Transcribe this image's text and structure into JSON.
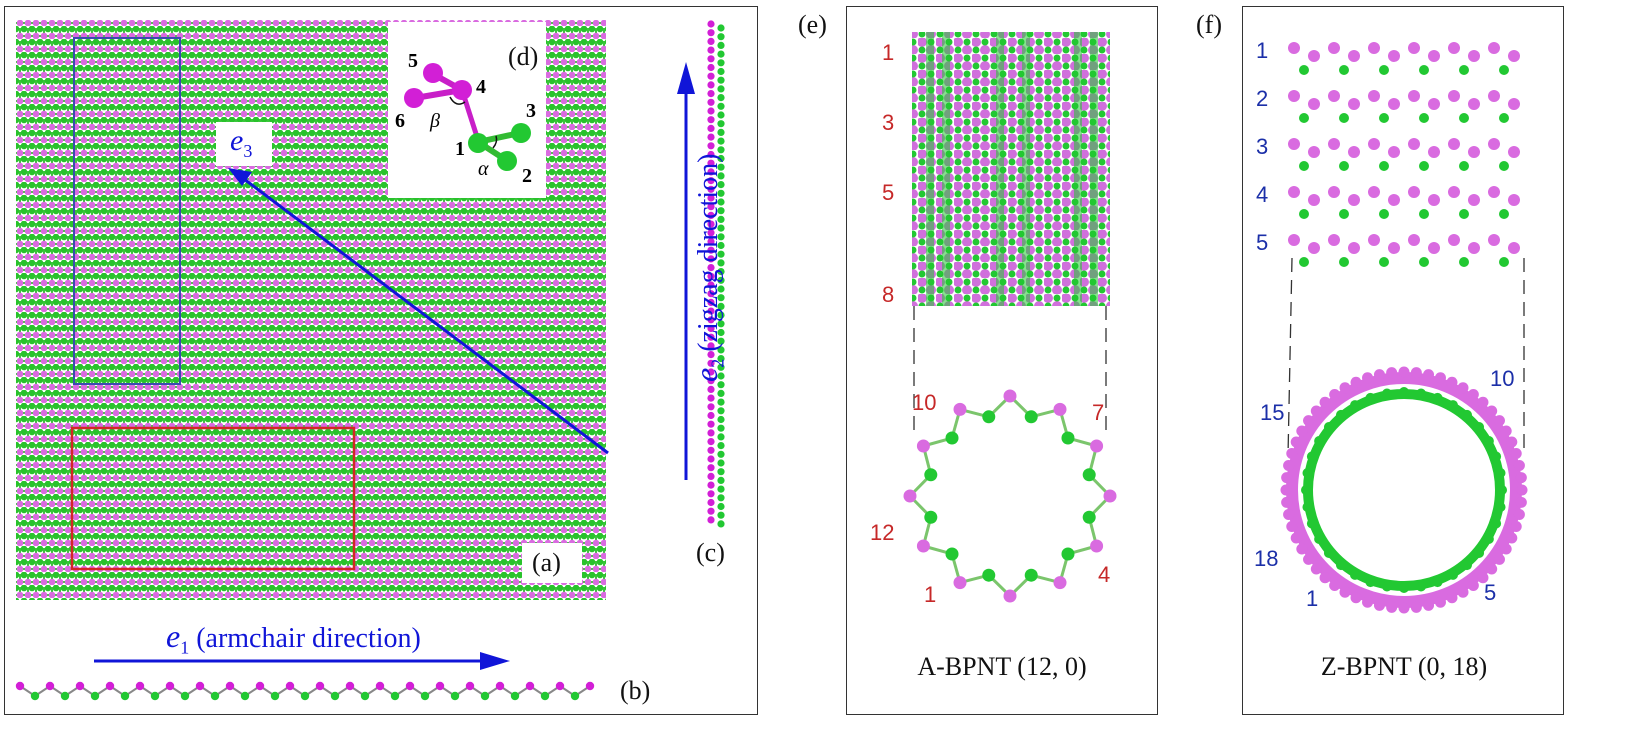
{
  "panel_a": {
    "label": "(a)",
    "colors": {
      "green": "#22c832",
      "pink": "#d96be0",
      "magenta": "#d21fd6",
      "bond_green": "#33bb33",
      "arrow": "#1015d8",
      "red_box": "#d32626",
      "blue_box": "#3a4bb0"
    },
    "vector_e3": {
      "symbol": "e",
      "sub": "3"
    }
  },
  "panel_b": {
    "label": "(b)",
    "e1": {
      "symbol": "e",
      "sub": "1",
      "text": "(armchair direction)"
    }
  },
  "panel_c": {
    "label": "(c)",
    "e2": {
      "symbol": "e",
      "sub": "2",
      "text": "(zigzag direction)"
    }
  },
  "panel_d": {
    "label": "(d)",
    "atoms": [
      "1",
      "2",
      "3",
      "4",
      "5",
      "6"
    ],
    "angles": [
      "α",
      "β"
    ]
  },
  "panel_e": {
    "label": "(e)",
    "side_numbers": [
      "1",
      "3",
      "5",
      "8"
    ],
    "ring_numbers": {
      "n10": "10",
      "n7": "7",
      "n12": "12",
      "n1": "1",
      "n4": "4"
    },
    "caption": "A-BPNT (12, 0)"
  },
  "panel_f": {
    "label": "(f)",
    "side_numbers": [
      "1",
      "2",
      "3",
      "4",
      "5"
    ],
    "ring_numbers": {
      "n10": "10",
      "n15": "15",
      "n18": "18",
      "n1": "1",
      "n5": "5"
    },
    "caption": "Z-BPNT (0, 18)"
  }
}
